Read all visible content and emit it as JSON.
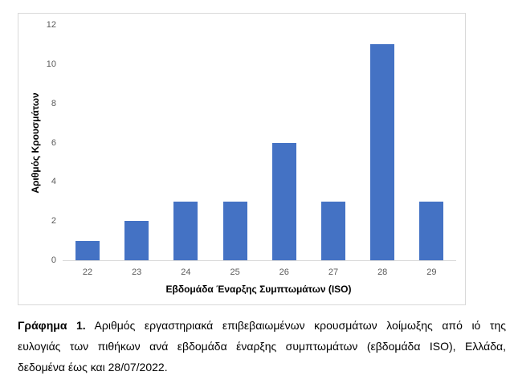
{
  "chart_data": {
    "type": "bar",
    "title": "",
    "xlabel": "Εβδομάδα Έναρξης Συμπτωμάτων (ISO)",
    "ylabel": "Αριθμός Κρουσμάτων",
    "categories": [
      "22",
      "23",
      "24",
      "25",
      "26",
      "27",
      "28",
      "29"
    ],
    "values": [
      1,
      2,
      3,
      3,
      6,
      3,
      11,
      3
    ],
    "ylim": [
      0,
      12
    ],
    "yticks": [
      "0",
      "2",
      "4",
      "6",
      "8",
      "10",
      "12"
    ],
    "grid": false,
    "legend": null,
    "bar_color": "#4472c4"
  },
  "caption": {
    "label": "Γράφημα 1.",
    "line1": "Αριθμός εργαστηριακά επιβεβαιωμένων κρουσμάτων λοίμωξης από ιό της",
    "line2": "ευλογιάς των πιθήκων ανά εβδομάδα έναρξης συμπτωμάτων (εβδομάδα ISO), Ελλάδα,",
    "line3": "δεδομένα έως και 28/07/2022."
  }
}
